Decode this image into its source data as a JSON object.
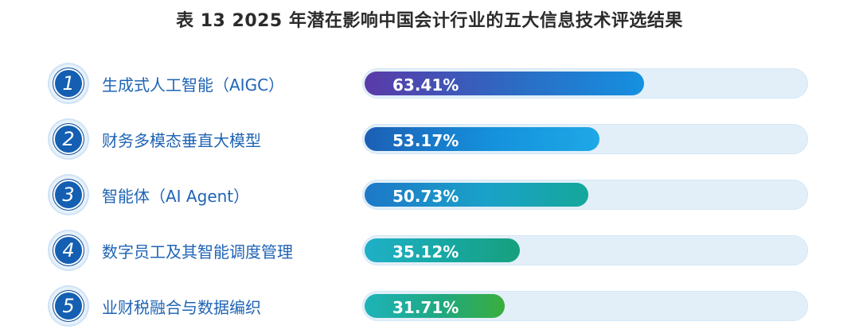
{
  "title": "表 13  2025 年潜在影响中国会计行业的五大信息技术评选结果",
  "chart_data": {
    "type": "bar",
    "orientation": "horizontal",
    "title": "表 13  2025 年潜在影响中国会计行业的五大信息技术评选结果",
    "categories": [
      "生成式人工智能（AIGC）",
      "财务多模态垂直大模型",
      "智能体（AI Agent）",
      "数字员工及其智能调度管理",
      "业财税融合与数据编织"
    ],
    "ranks": [
      "1",
      "2",
      "3",
      "4",
      "5"
    ],
    "values": [
      63.41,
      53.17,
      50.73,
      35.12,
      31.71
    ],
    "value_labels": [
      "63.41%",
      "53.17%",
      "50.73%",
      "35.12%",
      "31.71%"
    ],
    "xlim": [
      0,
      100
    ],
    "grid": false,
    "legend": "none"
  },
  "colors": {
    "label": "#1f64b5",
    "badge": "#145fb2",
    "track": "#e2eff9",
    "bar_gradients": [
      [
        "#5a3aa8",
        "#2b6cc4",
        "#1591e0"
      ],
      [
        "#1c5fb5",
        "#1592dc",
        "#1ea8e6"
      ],
      [
        "#1d78c8",
        "#1aa2c8",
        "#15a79a"
      ],
      [
        "#1fb0c8",
        "#17a7a0",
        "#17a07e"
      ],
      [
        "#1db3b8",
        "#20a880",
        "#3aae3c"
      ]
    ]
  }
}
